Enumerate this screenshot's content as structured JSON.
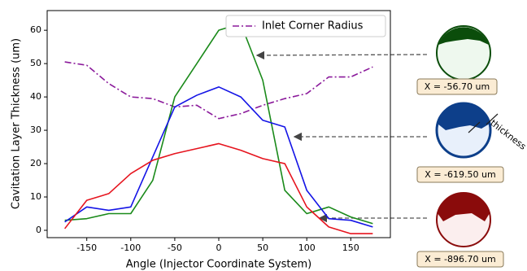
{
  "chart_data": {
    "type": "line",
    "xlabel": "Angle (Injector Coordinate System)",
    "ylabel": "Cavitation Layer Thickness (um)",
    "x": [
      -175,
      -150,
      -125,
      -100,
      -75,
      -50,
      -25,
      0,
      25,
      50,
      75,
      100,
      125,
      150,
      175
    ],
    "series": [
      {
        "name": "Inlet Corner Radius",
        "color": "#8b1a9b",
        "dash": "dashdot",
        "values": [
          50.5,
          49.5,
          44,
          40,
          39.5,
          37,
          37.5,
          33.5,
          35,
          37.5,
          39.5,
          41,
          46,
          46,
          49
        ]
      },
      {
        "color": "#1a8a1a",
        "values": [
          3,
          3.5,
          5,
          5,
          15,
          40,
          50,
          60,
          62,
          45,
          12,
          5,
          7,
          4,
          2
        ]
      },
      {
        "color": "#1414e6",
        "values": [
          2.5,
          7,
          6,
          7,
          22,
          37,
          40.5,
          43,
          40,
          33,
          31,
          12,
          3.5,
          3,
          1
        ]
      },
      {
        "color": "#e6141e",
        "values": [
          0.5,
          9,
          11,
          17,
          21,
          23,
          24.5,
          26,
          24,
          21.5,
          20,
          7,
          1,
          -1,
          -1
        ]
      }
    ],
    "xlim": [
      -195,
      195
    ],
    "ylim": [
      -2.2,
      65.9
    ],
    "xticks": [
      -150,
      -100,
      -50,
      0,
      50,
      100,
      150
    ],
    "yticks": [
      0,
      10,
      20,
      30,
      40,
      50,
      60
    ],
    "legend": "upper right",
    "annotations": [
      "X = -56.70 um",
      "X = -619.50 um",
      "X = -896.70 um",
      "thickness"
    ]
  }
}
